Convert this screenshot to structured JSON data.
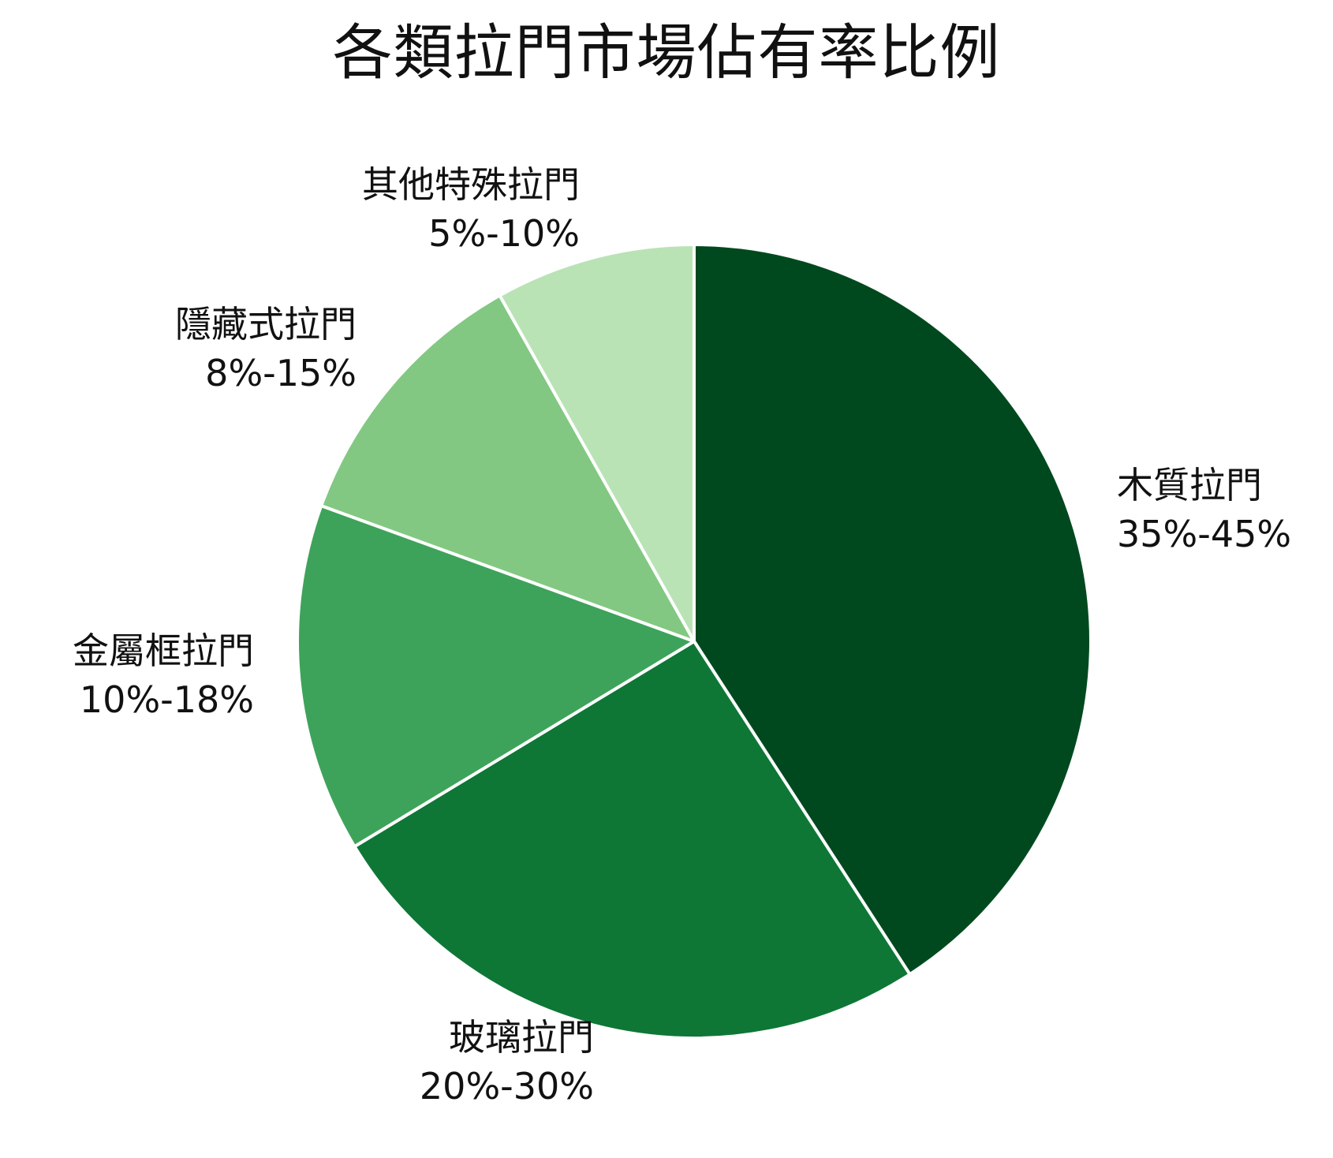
{
  "chart_data": {
    "type": "pie",
    "title": "各類拉門市場佔有率比例",
    "slices": [
      {
        "label": "木質拉門",
        "range": "35%-45%",
        "value": 40.85,
        "color": "#00491e"
      },
      {
        "label": "玻璃拉門",
        "range": "20%-30%",
        "value": 25.5,
        "color": "#0e7736"
      },
      {
        "label": "金屬框拉門",
        "range": "10%-18%",
        "value": 14.2,
        "color": "#3ea35a"
      },
      {
        "label": "隱藏式拉門",
        "range": "8%-15%",
        "value": 11.3,
        "color": "#82c882"
      },
      {
        "label": "其他特殊拉門",
        "range": "5%-10%",
        "value": 8.15,
        "color": "#b9e3b5"
      }
    ],
    "start_angle": "12 o'clock",
    "direction": "clockwise",
    "legend": "none (labels outside slices)"
  },
  "title": "各類拉門市場佔有率比例",
  "labels": {
    "wood": {
      "name": "木質拉門",
      "pct": "35%-45%"
    },
    "glass": {
      "name": "玻璃拉門",
      "pct": "20%-30%"
    },
    "metal": {
      "name": "金屬框拉門",
      "pct": "10%-18%"
    },
    "hidden": {
      "name": "隱藏式拉門",
      "pct": "8%-15%"
    },
    "other": {
      "name": "其他特殊拉門",
      "pct": "5%-10%"
    }
  }
}
